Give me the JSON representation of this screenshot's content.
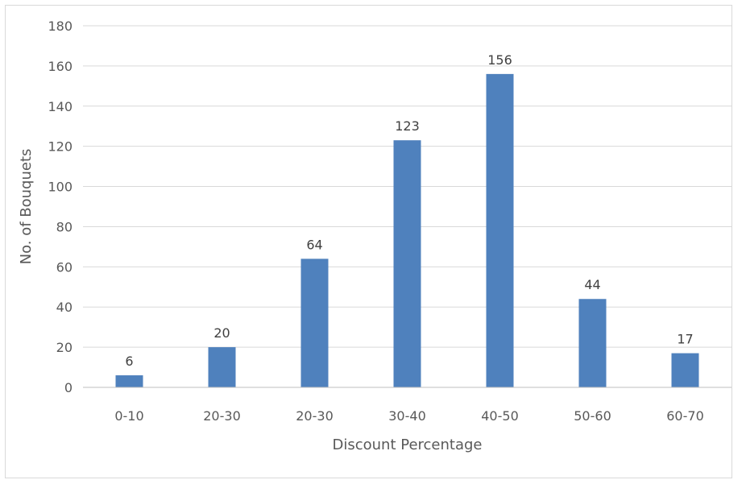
{
  "chart_data": {
    "type": "bar",
    "title": "",
    "xlabel": "Discount Percentage",
    "ylabel": "No. of Bouquets",
    "categories": [
      "0-10",
      "20-30",
      "20-30",
      "30-40",
      "40-50",
      "50-60",
      "60-70"
    ],
    "values": [
      6,
      20,
      64,
      123,
      156,
      44,
      17
    ],
    "ylim": [
      0,
      180
    ],
    "y_ticks": [
      0,
      20,
      40,
      60,
      80,
      100,
      120,
      140,
      160,
      180
    ],
    "grid": "horizontal",
    "legend": "none",
    "data_labels": true,
    "colors": {
      "bar": "#4f81bd",
      "grid": "#d9d9d9",
      "axis": "#bfbfbf",
      "text": "#595959"
    }
  }
}
